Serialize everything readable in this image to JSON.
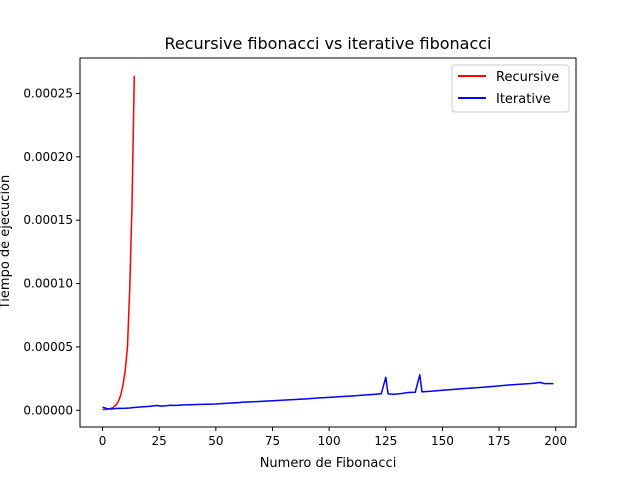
{
  "chart_data": {
    "type": "line",
    "title": "Recursive fibonacci vs iterative fibonacci",
    "xlabel": "Numero de Fibonacci",
    "ylabel": "Tiempo de ejecución",
    "xlim": [
      -9.95,
      208.95
    ],
    "ylim": [
      -1.32e-05,
      0.000278
    ],
    "xticks": [
      0,
      25,
      50,
      75,
      100,
      125,
      150,
      175,
      200
    ],
    "xtick_labels": [
      "0",
      "25",
      "50",
      "75",
      "100",
      "125",
      "150",
      "175",
      "200"
    ],
    "yticks": [
      0,
      5e-05,
      0.0001,
      0.00015,
      0.0002,
      0.00025
    ],
    "ytick_labels": [
      "0.00000",
      "0.00005",
      "0.00010",
      "0.00015",
      "0.00020",
      "0.00025"
    ],
    "grid": false,
    "legend_position": "top-right",
    "series": [
      {
        "name": "Recursive",
        "color": "#ff0000",
        "x": [
          0,
          1,
          2,
          3,
          4,
          5,
          6,
          7,
          8,
          9,
          10,
          11,
          12,
          13,
          14
        ],
        "y": [
          7e-07,
          6e-07,
          8e-07,
          1.1e-06,
          1.7e-06,
          2.7e-06,
          4.3e-06,
          7.1e-06,
          1.18e-05,
          1.98e-05,
          3.14e-05,
          5e-05,
          9.6e-05,
          0.000162,
          0.000264
        ]
      },
      {
        "name": "Iterative",
        "color": "#0000ff",
        "x": [
          0,
          2,
          4,
          6,
          8,
          10,
          12,
          14,
          16,
          18,
          20,
          22,
          24,
          26,
          28,
          30,
          32,
          35,
          40,
          45,
          50,
          55,
          58,
          60,
          62,
          65,
          70,
          75,
          80,
          85,
          90,
          95,
          100,
          105,
          110,
          115,
          120,
          123,
          125,
          126,
          128,
          130,
          132,
          135,
          138,
          140,
          141,
          143,
          145,
          150,
          155,
          160,
          165,
          170,
          175,
          180,
          185,
          190,
          193,
          195,
          199
        ],
        "y": [
          2.5e-06,
          1.2e-06,
          1e-06,
          1.5e-06,
          1.5e-06,
          1.6e-06,
          1.8e-06,
          2.2e-06,
          2.5e-06,
          2.8e-06,
          3e-06,
          3.4e-06,
          3.8e-06,
          3.3e-06,
          3.6e-06,
          4e-06,
          3.8e-06,
          4.2e-06,
          4.5e-06,
          4.8e-06,
          5e-06,
          5.5e-06,
          5.8e-06,
          6e-06,
          6.4e-06,
          6.6e-06,
          7e-06,
          7.5e-06,
          8e-06,
          8.5e-06,
          9e-06,
          9.7e-06,
          1.02e-05,
          1.08e-05,
          1.13e-05,
          1.2e-05,
          1.25e-05,
          1.3e-05,
          2.6e-05,
          1.3e-05,
          1.26e-05,
          1.28e-05,
          1.32e-05,
          1.4e-05,
          1.42e-05,
          2.8e-05,
          1.45e-05,
          1.48e-05,
          1.5e-05,
          1.58e-05,
          1.65e-05,
          1.72e-05,
          1.78e-05,
          1.85e-05,
          1.93e-05,
          2e-05,
          2.06e-05,
          2.12e-05,
          2.2e-05,
          2.1e-05,
          2.1e-05
        ]
      }
    ]
  }
}
